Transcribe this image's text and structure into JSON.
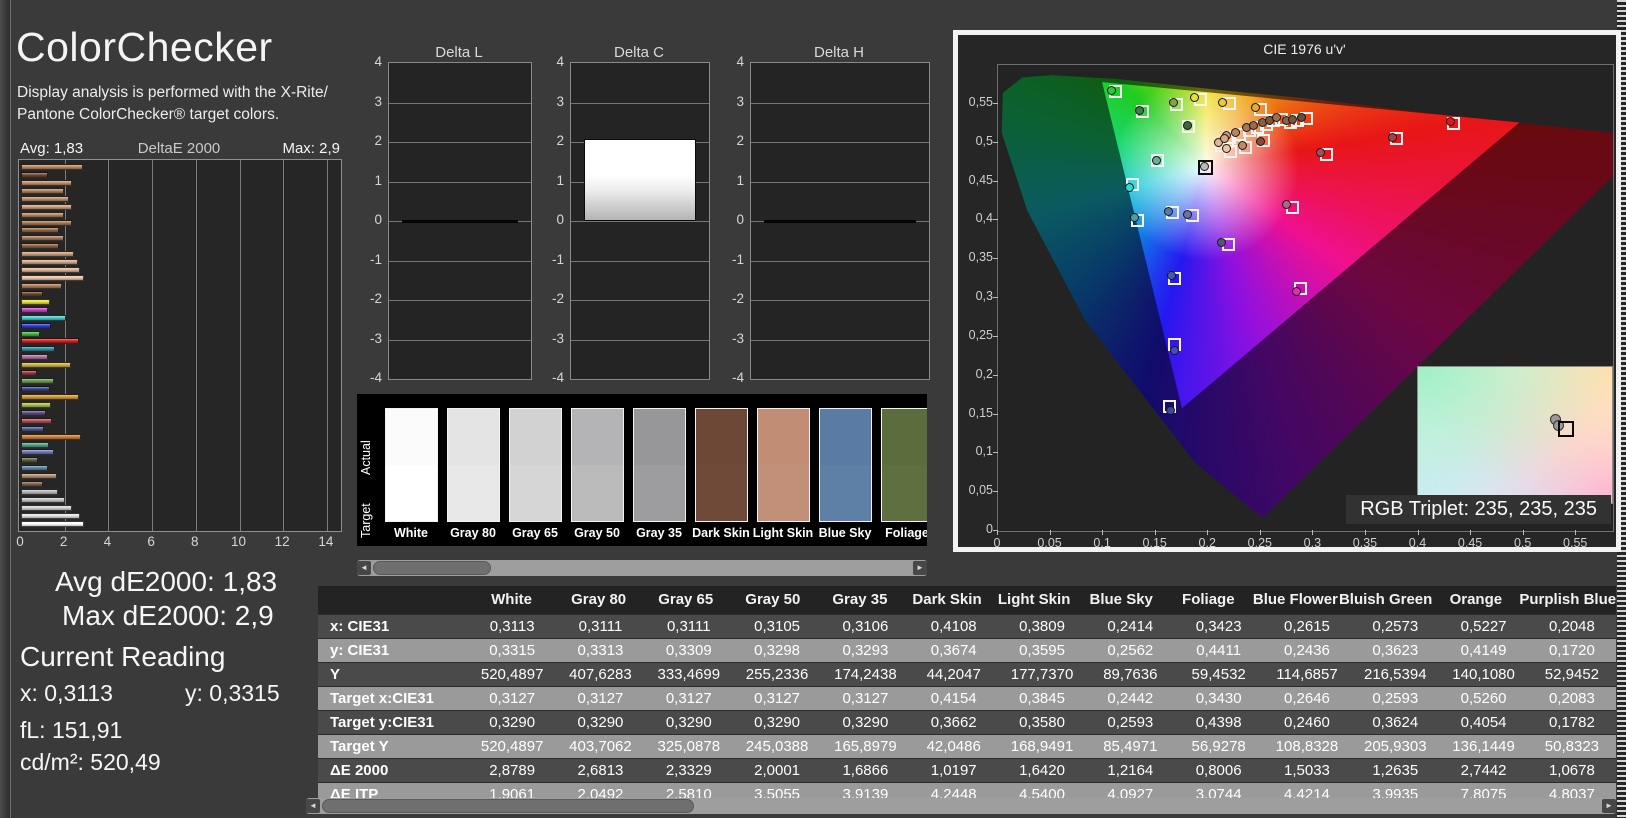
{
  "header": {
    "title": "ColorChecker",
    "subtitle_line1": "Display analysis is performed with the X-Rite/",
    "subtitle_line2": "Pantone ColorChecker® target colors."
  },
  "readings": {
    "avg": "Avg dE2000: 1,83",
    "max": "Max dE2000: 2,9",
    "current_title": "Current Reading",
    "x": "x: 0,3113",
    "y": "y: 0,3315",
    "fl": "fL: 151,91",
    "cdm2": "cd/m²: 520,49"
  },
  "swatches": {
    "row_label_top": "Actual",
    "row_label_bottom": "Target",
    "items": [
      {
        "name": "White",
        "actual": "#fbfbfb",
        "target": "#ffffff"
      },
      {
        "name": "Gray 80",
        "actual": "#e4e4e4",
        "target": "#e8e8e8"
      },
      {
        "name": "Gray 65",
        "actual": "#d2d2d2",
        "target": "#d6d6d6"
      },
      {
        "name": "Gray 50",
        "actual": "#b4b4b6",
        "target": "#bababa"
      },
      {
        "name": "Gray 35",
        "actual": "#97979a",
        "target": "#9d9da0"
      },
      {
        "name": "Dark Skin",
        "actual": "#6d4837",
        "target": "#704a38"
      },
      {
        "name": "Light Skin",
        "actual": "#c18d75",
        "target": "#c29078"
      },
      {
        "name": "Blue Sky",
        "actual": "#5a7ba3",
        "target": "#5e7fa6"
      },
      {
        "name": "Foliage",
        "actual": "#5b6c3d",
        "target": "#5e703f"
      }
    ]
  },
  "table": {
    "columns": [
      "White",
      "Gray 80",
      "Gray 65",
      "Gray 50",
      "Gray 35",
      "Dark Skin",
      "Light Skin",
      "Blue Sky",
      "Foliage",
      "Blue Flower",
      "Bluish Green",
      "Orange",
      "Purplish Blue"
    ],
    "rows": [
      {
        "label": "x: CIE31",
        "shade": "dark",
        "values": [
          "0,3113",
          "0,3111",
          "0,3111",
          "0,3105",
          "0,3106",
          "0,4108",
          "0,3809",
          "0,2414",
          "0,3423",
          "0,2615",
          "0,2573",
          "0,5227",
          "0,2048"
        ]
      },
      {
        "label": "y: CIE31",
        "shade": "light",
        "values": [
          "0,3315",
          "0,3313",
          "0,3309",
          "0,3298",
          "0,3293",
          "0,3674",
          "0,3595",
          "0,2562",
          "0,4411",
          "0,2436",
          "0,3623",
          "0,4149",
          "0,1720"
        ]
      },
      {
        "label": "Y",
        "shade": "dark",
        "values": [
          "520,4897",
          "407,6283",
          "333,4699",
          "255,2336",
          "174,2438",
          "44,2047",
          "177,7370",
          "89,7636",
          "59,4532",
          "114,6857",
          "216,5394",
          "140,1080",
          "52,9452"
        ]
      },
      {
        "label": "Target x:CIE31",
        "shade": "light",
        "values": [
          "0,3127",
          "0,3127",
          "0,3127",
          "0,3127",
          "0,3127",
          "0,4154",
          "0,3845",
          "0,2442",
          "0,3430",
          "0,2646",
          "0,2593",
          "0,5260",
          "0,2083"
        ]
      },
      {
        "label": "Target y:CIE31",
        "shade": "dark",
        "values": [
          "0,3290",
          "0,3290",
          "0,3290",
          "0,3290",
          "0,3290",
          "0,3662",
          "0,3580",
          "0,2593",
          "0,4398",
          "0,2460",
          "0,3624",
          "0,4054",
          "0,1782"
        ]
      },
      {
        "label": "Target Y",
        "shade": "light",
        "values": [
          "520,4897",
          "403,7062",
          "325,0878",
          "245,0388",
          "165,8979",
          "42,0486",
          "168,9491",
          "85,4971",
          "56,9278",
          "108,8328",
          "205,9303",
          "136,1449",
          "50,8323"
        ]
      },
      {
        "label": "ΔE 2000",
        "shade": "dark",
        "values": [
          "2,8789",
          "2,6813",
          "2,3329",
          "2,0001",
          "1,6866",
          "1,0197",
          "1,6420",
          "1,2164",
          "0,8006",
          "1,5033",
          "1,2635",
          "2,7442",
          "1,0678"
        ]
      },
      {
        "label": "ΔE ITP",
        "shade": "light",
        "values": [
          "1,9061",
          "2,0492",
          "2,5810",
          "3,5055",
          "3,9139",
          "4,2448",
          "4,5400",
          "4,0927",
          "3,0744",
          "4,4214",
          "3,9935",
          "7,8075",
          "4,8037"
        ]
      }
    ]
  },
  "chart_data": [
    {
      "id": "de2000_bars",
      "type": "bar",
      "orientation": "horizontal",
      "title": "DeltaE 2000",
      "avg_label": "Avg: 1,83",
      "max_label": "Max: 2,9",
      "xlim": [
        0,
        14
      ],
      "x_ticks": [
        "0",
        "2",
        "4",
        "6",
        "8",
        "10",
        "12",
        "14"
      ],
      "values": [
        2.82,
        1.22,
        2.32,
        1.98,
        2.21,
        2.32,
        1.98,
        2.32,
        1.76,
        1.98,
        1.76,
        2.41,
        2.63,
        2.7,
        2.9,
        1.88,
        0.99,
        1.34,
        1.22,
        2.06,
        1.37,
        0.87,
        2.67,
        1.57,
        1.22,
        2.29,
        0.73,
        1.53,
        1.34,
        2.64,
        1.37,
        1.15,
        1.42,
        1.04,
        2.7442,
        1.2635,
        1.5033,
        0.8006,
        1.2164,
        1.642,
        1.0197,
        1.6866,
        2.0001,
        2.3329,
        2.6813,
        2.8789
      ],
      "colors": [
        "#b9855c",
        "#6f4630",
        "#c08a64",
        "#b07f5a",
        "#bd8a66",
        "#cc9a76",
        "#b5845c",
        "#a5764e",
        "#956946",
        "#a5785a",
        "#8a5c3c",
        "#c79a77",
        "#d2a584",
        "#ddb394",
        "#e7c3a6",
        "#ad7c54",
        "#674026",
        "#e6df2e",
        "#c83fc8",
        "#3ec9cd",
        "#2a35cc",
        "#3bb43b",
        "#d31c1c",
        "#2f8a9e",
        "#b06a9e",
        "#c9b23c",
        "#96323e",
        "#69984f",
        "#35427f",
        "#d6952e",
        "#a9bf47",
        "#574a7d",
        "#b04a52",
        "#49598c",
        "#d07a2e",
        "#4fa083",
        "#6c74b4",
        "#59603f",
        "#5c80a2",
        "#b28d6d",
        "#7d5e44",
        "#b5b5b5",
        "#c3c3c3",
        "#d2d2d2",
        "#e3e3e3",
        "#ffffff"
      ]
    },
    {
      "id": "delta_lch",
      "type": "bar",
      "ylim": [
        -4,
        4
      ],
      "y_ticks": [
        "4",
        "3",
        "2",
        "1",
        "0",
        "-1",
        "-2",
        "-3",
        "-4"
      ],
      "charts": [
        {
          "title": "Delta L",
          "value": 0
        },
        {
          "title": "Delta C",
          "value": 2.07
        },
        {
          "title": "Delta H",
          "value": 0
        }
      ]
    },
    {
      "id": "cie_1976",
      "type": "scatter",
      "title": "CIE 1976 u'v'",
      "xlim": [
        0,
        0.585
      ],
      "ylim": [
        0,
        0.6
      ],
      "x_ticks": [
        "0",
        "0,05",
        "0,1",
        "0,15",
        "0,2",
        "0,25",
        "0,3",
        "0,35",
        "0,4",
        "0,45",
        "0,5",
        "0,55"
      ],
      "y_ticks": [
        "0",
        "0,05",
        "0,1",
        "0,15",
        "0,2",
        "0,25",
        "0,3",
        "0,35",
        "0,4",
        "0,45",
        "0,5",
        "0,55"
      ],
      "rgb_triplet_label": "RGB Triplet: 235, 235, 235",
      "white_point": {
        "u": 0.198,
        "v": 0.468
      },
      "locus": [
        [
          0.252,
          0.017
        ],
        [
          0.235,
          0.035
        ],
        [
          0.188,
          0.087
        ],
        [
          0.083,
          0.271
        ],
        [
          0.028,
          0.412
        ],
        [
          0.0035,
          0.513
        ],
        [
          0.0046,
          0.564
        ],
        [
          0.023,
          0.584
        ],
        [
          0.05,
          0.587
        ],
        [
          0.113,
          0.582
        ],
        [
          0.203,
          0.569
        ],
        [
          0.3,
          0.556
        ],
        [
          0.404,
          0.539
        ],
        [
          0.52,
          0.522
        ],
        [
          0.623,
          0.507
        ]
      ],
      "gamut": [
        [
          0.496,
          0.526
        ],
        [
          0.099,
          0.578
        ],
        [
          0.175,
          0.158
        ]
      ],
      "points": [
        {
          "u": 0.112,
          "v": 0.566,
          "c": "#2ec83e",
          "du": -0.004,
          "dv": 0.001
        },
        {
          "u": 0.137,
          "v": 0.54,
          "c": "#3f7a50",
          "du": -0.002,
          "dv": 0.002
        },
        {
          "u": 0.17,
          "v": 0.549,
          "c": "#8aa04a",
          "du": -0.003,
          "dv": 0.003
        },
        {
          "u": 0.193,
          "v": 0.556,
          "c": "#e6df3a",
          "du": -0.006,
          "dv": 0.002
        },
        {
          "u": 0.22,
          "v": 0.551,
          "c": "#e6cf2e",
          "du": -0.006,
          "dv": 0.001
        },
        {
          "u": 0.25,
          "v": 0.543,
          "c": "#e8a82e",
          "du": -0.005,
          "dv": 0.002
        },
        {
          "u": 0.181,
          "v": 0.521,
          "c": "#3f6a35",
          "du": -0.001,
          "dv": 0.001
        },
        {
          "u": 0.152,
          "v": 0.477,
          "c": "#6fae96",
          "du": -0.001,
          "dv": 0.0
        },
        {
          "u": 0.1975,
          "v": 0.4685,
          "c": "#b9b9b9",
          "du": -0.0015,
          "dv": 0.001,
          "current": true
        },
        {
          "u": 0.128,
          "v": 0.446,
          "c": "#35d8d8",
          "du": -0.003,
          "dv": -0.004
        },
        {
          "u": 0.2205,
          "v": 0.5065,
          "c": "#cf9a72",
          "du": -0.003,
          "dv": 0.003
        },
        {
          "u": 0.23,
          "v": 0.511,
          "c": "#b9855f",
          "du": -0.004,
          "dv": 0.002
        },
        {
          "u": 0.239,
          "v": 0.516,
          "c": "#a9745a",
          "du": -0.003,
          "dv": 0.003
        },
        {
          "u": 0.247,
          "v": 0.52,
          "c": "#9a6a4f",
          "du": -0.004,
          "dv": 0.002
        },
        {
          "u": 0.255,
          "v": 0.524,
          "c": "#8a5f45",
          "du": -0.003,
          "dv": 0.002
        },
        {
          "u": 0.262,
          "v": 0.528,
          "c": "#7a5540",
          "du": -0.004,
          "dv": 0.001
        },
        {
          "u": 0.27,
          "v": 0.53,
          "c": "#9c7050",
          "du": -0.005,
          "dv": 0.002
        },
        {
          "u": 0.278,
          "v": 0.526,
          "c": "#8a6248",
          "du": -0.004,
          "dv": 0.003
        },
        {
          "u": 0.285,
          "v": 0.529,
          "c": "#795640",
          "du": -0.005,
          "dv": 0.001
        },
        {
          "u": 0.293,
          "v": 0.531,
          "c": "#6a4a38",
          "du": -0.004,
          "dv": 0.002
        },
        {
          "u": 0.213,
          "v": 0.496,
          "c": "#e2b694",
          "du": -0.003,
          "dv": 0.004
        },
        {
          "u": 0.221,
          "v": 0.489,
          "c": "#eec6a6",
          "du": -0.004,
          "dv": 0.004
        },
        {
          "u": 0.218,
          "v": 0.502,
          "c": "#d8a884",
          "du": -0.003,
          "dv": 0.003
        },
        {
          "u": 0.235,
          "v": 0.494,
          "c": "#c08a6a",
          "du": -0.002,
          "dv": 0.002
        },
        {
          "u": 0.253,
          "v": 0.503,
          "c": "#8a4a3a",
          "du": -0.003,
          "dv": -0.001
        },
        {
          "u": 0.433,
          "v": 0.525,
          "c": "#e01818",
          "du": -0.003,
          "dv": 0.002
        },
        {
          "u": 0.379,
          "v": 0.506,
          "c": "#a84048",
          "du": -0.004,
          "dv": 0.001
        },
        {
          "u": 0.312,
          "v": 0.485,
          "c": "#a05058",
          "du": -0.005,
          "dv": 0.002
        },
        {
          "u": 0.28,
          "v": 0.417,
          "c": "#b8608a",
          "du": -0.006,
          "dv": 0.004
        },
        {
          "u": 0.166,
          "v": 0.41,
          "c": "#5878a8",
          "du": -0.004,
          "dv": 0.002
        },
        {
          "u": 0.185,
          "v": 0.406,
          "c": "#7070a8",
          "du": -0.005,
          "dv": 0.001
        },
        {
          "u": 0.133,
          "v": 0.4,
          "c": "#4aa0aa",
          "du": -0.003,
          "dv": 0.004
        },
        {
          "u": 0.219,
          "v": 0.369,
          "c": "#585278",
          "du": -0.006,
          "dv": 0.003
        },
        {
          "u": 0.168,
          "v": 0.325,
          "c": "#4858a8",
          "du": -0.003,
          "dv": 0.004
        },
        {
          "u": 0.288,
          "v": 0.312,
          "c": "#e030b0",
          "du": -0.004,
          "dv": -0.004
        },
        {
          "u": 0.168,
          "v": 0.24,
          "c": "#4050b8",
          "du": 0.0,
          "dv": -0.007
        },
        {
          "u": 0.163,
          "v": 0.16,
          "c": "#3848a0",
          "du": 0.001,
          "dv": -0.005
        }
      ],
      "inset_marker": {
        "x_pct": 72,
        "y_pct": 40
      }
    }
  ]
}
